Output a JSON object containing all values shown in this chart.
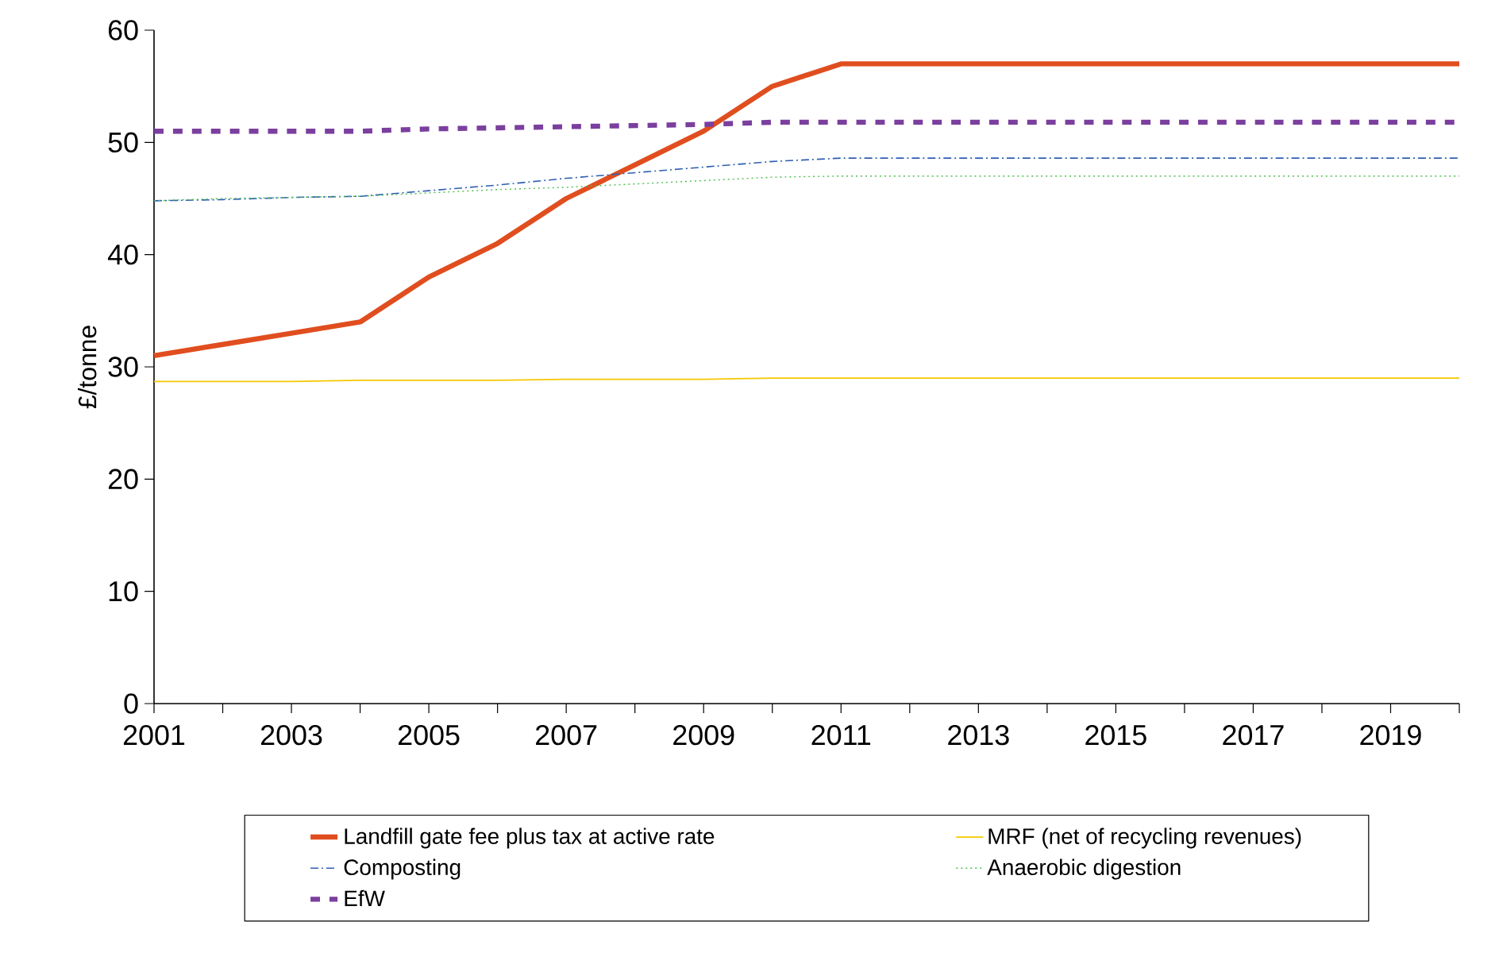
{
  "chart_data": {
    "type": "line",
    "ylabel": "£/tonne",
    "x": [
      2001,
      2002,
      2003,
      2004,
      2005,
      2006,
      2007,
      2008,
      2009,
      2010,
      2011,
      2012,
      2013,
      2014,
      2015,
      2016,
      2017,
      2018,
      2019,
      2020
    ],
    "series": [
      {
        "name": "Landfill gate fee plus tax at active rate",
        "color": "#e04e1f",
        "line_style": "solid",
        "values": [
          31,
          32,
          33,
          34,
          38,
          41,
          45,
          48,
          51,
          55,
          57,
          57,
          57,
          57,
          57,
          57,
          57,
          57,
          57,
          57
        ]
      },
      {
        "name": "MRF (net of recycling revenues)",
        "color": "#f5c800",
        "line_style": "solid",
        "values": [
          28.7,
          28.7,
          28.7,
          28.8,
          28.8,
          28.8,
          28.9,
          28.9,
          28.9,
          29,
          29,
          29,
          29,
          29,
          29,
          29,
          29,
          29,
          29,
          29
        ]
      },
      {
        "name": "Composting",
        "color": "#2e5fb4",
        "line_style": "dashdot",
        "values": [
          44.8,
          44.9,
          45.1,
          45.2,
          45.7,
          46.2,
          46.8,
          47.3,
          47.8,
          48.3,
          48.6,
          48.6,
          48.6,
          48.6,
          48.6,
          48.6,
          48.6,
          48.6,
          48.6,
          48.6
        ]
      },
      {
        "name": "Anaerobic digestion",
        "color": "#4bbf4b",
        "line_style": "dotted",
        "values": [
          44.8,
          45,
          45.1,
          45.2,
          45.5,
          45.8,
          46,
          46.3,
          46.6,
          46.9,
          47,
          47,
          47,
          47,
          47,
          47,
          47,
          47,
          47,
          47
        ]
      },
      {
        "name": "EfW",
        "color": "#7b3f9e",
        "line_style": "dashed",
        "values": [
          51,
          51,
          51,
          51,
          51.2,
          51.3,
          51.4,
          51.5,
          51.6,
          51.8,
          51.8,
          51.8,
          51.8,
          51.8,
          51.8,
          51.8,
          51.8,
          51.8,
          51.8,
          51.8
        ]
      }
    ],
    "xlim": [
      2001,
      2020
    ],
    "xticks": [
      2001,
      {
        "value": 2002,
        "label": null
      },
      2003,
      {
        "value": 2004,
        "label": null
      },
      2005,
      {
        "value": 2006,
        "label": null
      },
      2007,
      {
        "value": 2008,
        "label": null
      },
      2009,
      {
        "value": 2010,
        "label": null
      },
      2011,
      {
        "value": 2012,
        "label": null
      },
      2013,
      {
        "value": 2014,
        "label": null
      },
      2015,
      {
        "value": 2016,
        "label": null
      },
      2017,
      {
        "value": 2018,
        "label": null
      },
      2019,
      {
        "value": 2020,
        "label": null
      }
    ],
    "ylim": [
      0,
      60
    ],
    "yticks": [
      0,
      10,
      20,
      30,
      40,
      50,
      60
    ],
    "grid": false,
    "legend": "bottom",
    "marker": "none"
  }
}
